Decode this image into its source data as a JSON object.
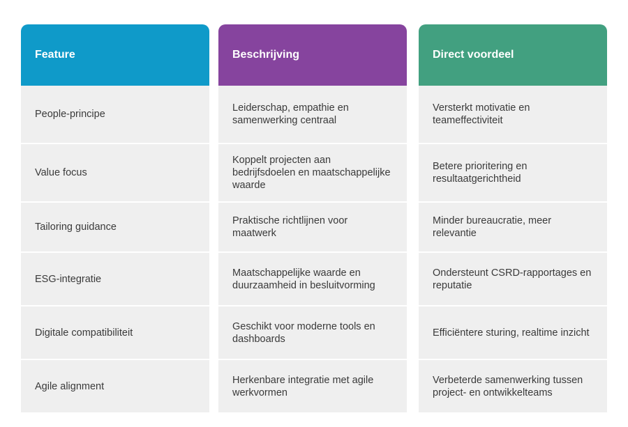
{
  "colors": {
    "feature": "#0f9ac9",
    "beschrijving": "#86449e",
    "voordeel": "#42a080"
  },
  "headers": [
    "Feature",
    "Beschrijving",
    "Direct voordeel"
  ],
  "rows": [
    [
      "People-principe",
      "Leiderschap, empathie en samenwerking centraal",
      "Versterkt motivatie en teameffectiviteit"
    ],
    [
      "Value focus",
      "Koppelt projecten aan bedrijfsdoelen en maatschappelijke waarde",
      "Betere prioritering en resultaatgerichtheid"
    ],
    [
      "Tailoring guidance",
      "Praktische richtlijnen voor maatwerk",
      "Minder bureaucratie, meer relevantie"
    ],
    [
      "ESG-integratie",
      "Maatschappelijke waarde en duurzaamheid in besluitvorming",
      "Ondersteunt CSRD-rapportages en reputatie"
    ],
    [
      "Digitale compatibiliteit",
      "Geschikt voor moderne tools en dashboards",
      "Efficiëntere sturing, realtime inzicht"
    ],
    [
      "Agile alignment",
      "Herkenbare integratie met agile werkvormen",
      "Verbeterde samenwerking tussen project- en ontwikkelteams"
    ]
  ]
}
